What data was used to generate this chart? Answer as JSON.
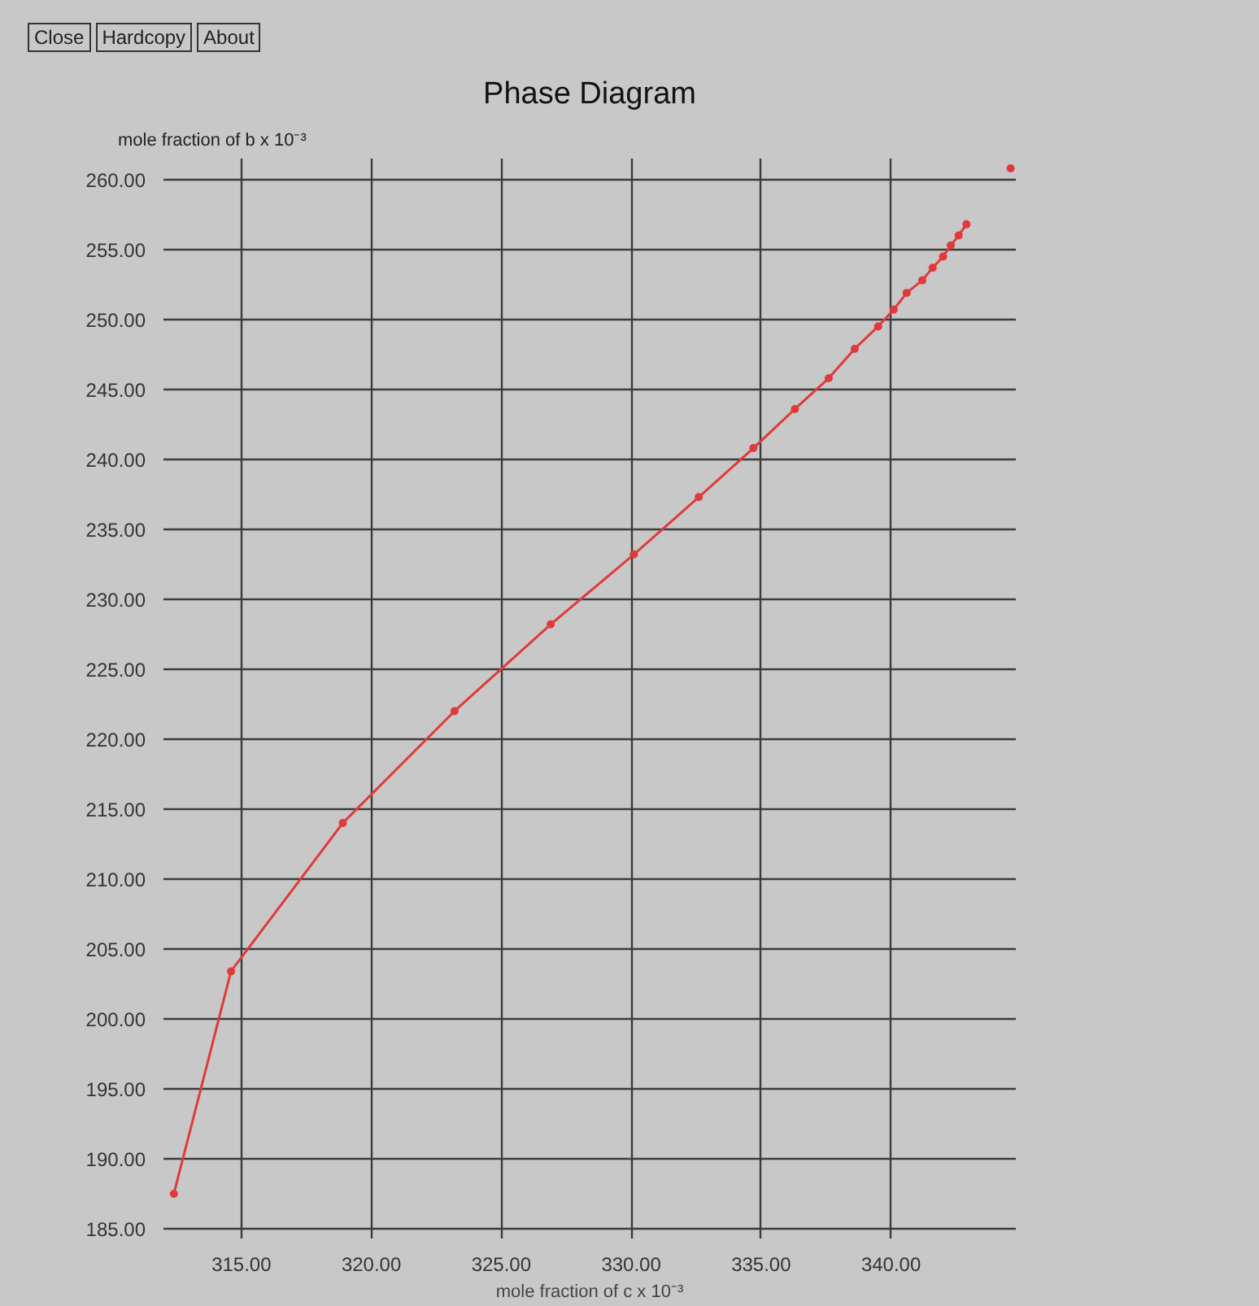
{
  "chart_data": {
    "type": "line",
    "title": "Phase Diagram",
    "xlabel": "mole fraction of c x 10⁻³",
    "ylabel": "mole fraction of b x 10⁻³",
    "annotations": [
      "Close",
      "Hardcopy",
      "About"
    ],
    "xlim": [
      312,
      344.8
    ],
    "ylim": [
      184.3,
      261.5
    ],
    "xticks": [
      {
        "value": 315,
        "label": "315.00"
      },
      {
        "value": 320,
        "label": "320.00"
      },
      {
        "value": 325,
        "label": "325.00"
      },
      {
        "value": 330,
        "label": "330.00"
      },
      {
        "value": 335,
        "label": "335.00"
      },
      {
        "value": 340,
        "label": "340.00"
      }
    ],
    "yticks": [
      {
        "value": 185,
        "label": "185.00"
      },
      {
        "value": 190,
        "label": "190.00"
      },
      {
        "value": 195,
        "label": "195.00"
      },
      {
        "value": 200,
        "label": "200.00"
      },
      {
        "value": 205,
        "label": "205.00"
      },
      {
        "value": 210,
        "label": "210.00"
      },
      {
        "value": 215,
        "label": "215.00"
      },
      {
        "value": 220,
        "label": "220.00"
      },
      {
        "value": 225,
        "label": "225.00"
      },
      {
        "value": 230,
        "label": "230.00"
      },
      {
        "value": 235,
        "label": "235.00"
      },
      {
        "value": 240,
        "label": "240.00"
      },
      {
        "value": 245,
        "label": "245.00"
      },
      {
        "value": 250,
        "label": "250.00"
      },
      {
        "value": 255,
        "label": "255.00"
      },
      {
        "value": 260,
        "label": "260.00"
      }
    ],
    "grid": true,
    "marker": "circle",
    "line_style": "solid",
    "series": [
      {
        "color": "#e03a3a",
        "x": [
          312.4,
          314.6,
          318.9,
          323.2,
          326.9,
          330.1,
          332.6,
          334.7,
          336.3,
          337.6,
          338.6,
          339.5,
          340.1,
          340.6,
          341.2,
          341.6,
          342.0,
          342.3,
          342.6,
          342.9
        ],
        "values": [
          187.5,
          203.4,
          214.0,
          222.0,
          228.2,
          233.2,
          237.3,
          240.8,
          243.6,
          245.8,
          247.9,
          249.5,
          250.7,
          251.9,
          252.8,
          253.7,
          254.5,
          255.3,
          256.0,
          256.8
        ]
      },
      {
        "type": "scatter",
        "color": "#e03a3a",
        "x": [
          344.6
        ],
        "values": [
          260.8
        ]
      }
    ]
  }
}
